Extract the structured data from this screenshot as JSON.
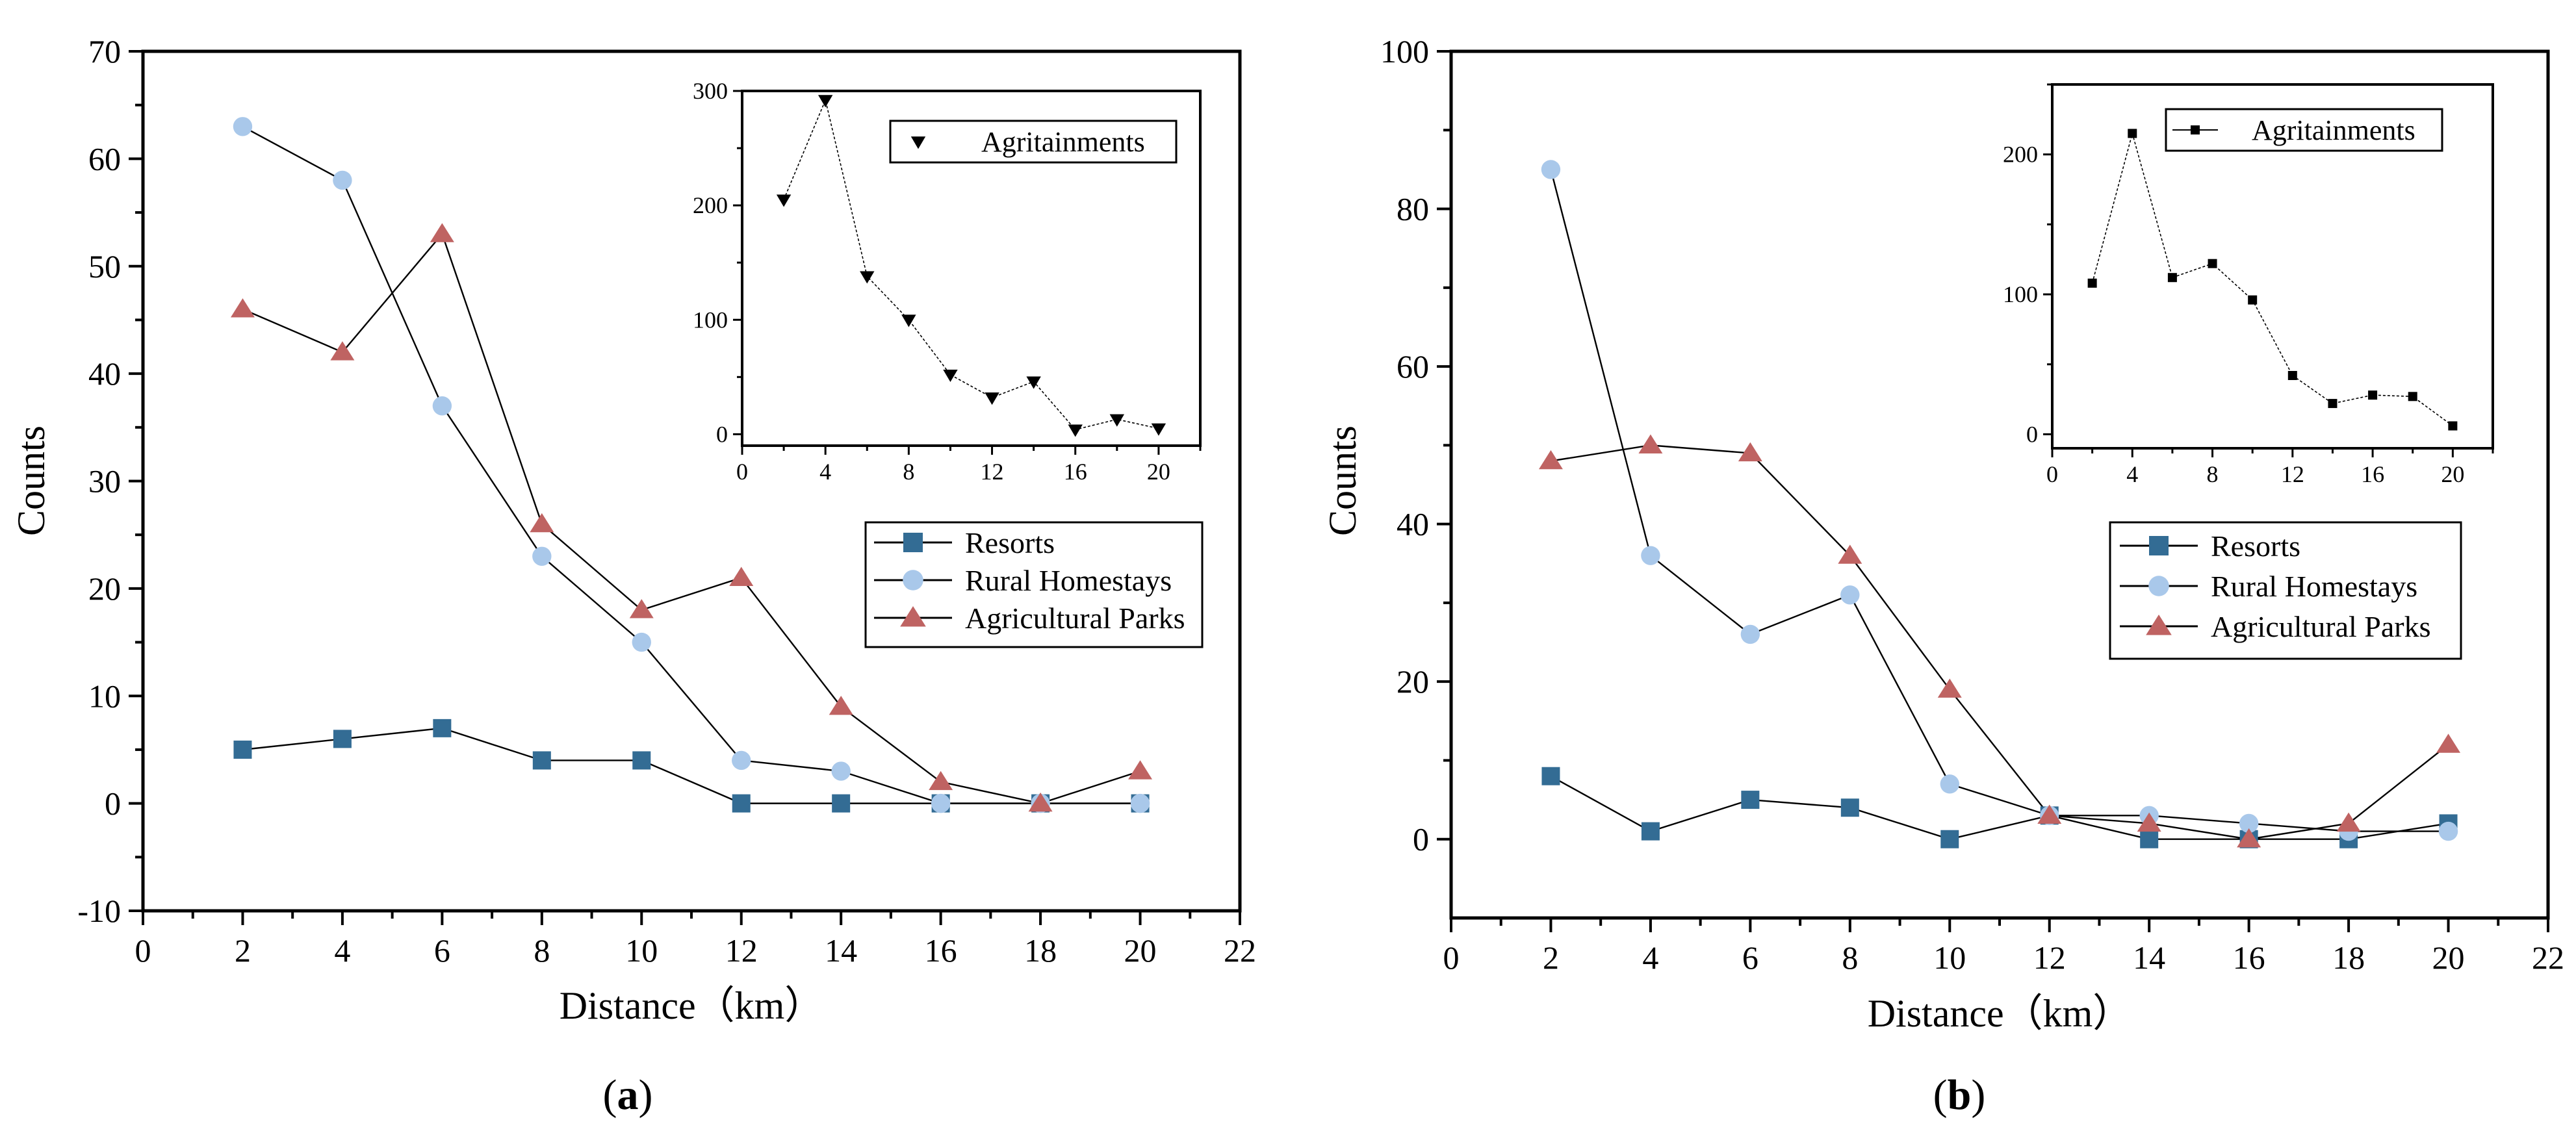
{
  "colors": {
    "resorts": "#336C94",
    "homestays": "#A9C8EA",
    "parks": "#BF6362",
    "agritainments": "#000000",
    "axis": "#000000"
  },
  "chart_data": [
    {
      "type": "line",
      "panel_label": "(a)",
      "panel_label_letter": "a",
      "xlabel": "Distance（km）",
      "ylabel": "Counts",
      "xlim": [
        0,
        22
      ],
      "ylim": [
        -10,
        70
      ],
      "xticks": [
        0,
        2,
        4,
        6,
        8,
        10,
        12,
        14,
        16,
        18,
        20,
        22
      ],
      "yticks": [
        -10,
        0,
        10,
        20,
        30,
        40,
        50,
        60,
        70
      ],
      "legend_position": "right-middle",
      "series": [
        {
          "name": "Resorts",
          "marker": "square",
          "color_key": "resorts",
          "x": [
            2,
            4,
            6,
            8,
            10,
            12,
            14,
            16,
            18,
            20
          ],
          "values": [
            5,
            6,
            7,
            4,
            4,
            0,
            0,
            0,
            0,
            0
          ]
        },
        {
          "name": "Rural Homestays",
          "marker": "circle",
          "color_key": "homestays",
          "x": [
            2,
            4,
            6,
            8,
            10,
            12,
            14,
            16,
            18,
            20
          ],
          "values": [
            63,
            58,
            37,
            23,
            15,
            4,
            3,
            0,
            0,
            0
          ]
        },
        {
          "name": "Agricultural Parks",
          "marker": "triangle",
          "color_key": "parks",
          "x": [
            2,
            4,
            6,
            8,
            10,
            12,
            14,
            16,
            18,
            20
          ],
          "values": [
            46,
            42,
            53,
            26,
            18,
            21,
            9,
            2,
            0,
            3
          ]
        }
      ],
      "inset": {
        "xlim": [
          0,
          22
        ],
        "ylim": [
          -10,
          300
        ],
        "xticks": [
          0,
          4,
          8,
          12,
          16,
          20
        ],
        "yticks": [
          0,
          100,
          200,
          300
        ],
        "series": [
          {
            "name": "Agritainments",
            "marker": "triangle-down",
            "color_key": "agritainments",
            "x": [
              2,
              4,
              6,
              8,
              10,
              12,
              14,
              16,
              18,
              20
            ],
            "values": [
              205,
              292,
              138,
              100,
              52,
              32,
              46,
              4,
              13,
              5
            ]
          }
        ]
      }
    },
    {
      "type": "line",
      "panel_label": "(b)",
      "panel_label_letter": "b",
      "xlabel": "Distance（km）",
      "ylabel": "Counts",
      "xlim": [
        0,
        22
      ],
      "ylim": [
        -10,
        100
      ],
      "xticks": [
        0,
        2,
        4,
        6,
        8,
        10,
        12,
        14,
        16,
        18,
        20,
        22
      ],
      "yticks": [
        0,
        20,
        40,
        60,
        80,
        100
      ],
      "legend_position": "right-middle",
      "series": [
        {
          "name": "Resorts",
          "marker": "square",
          "color_key": "resorts",
          "x": [
            2,
            4,
            6,
            8,
            10,
            12,
            14,
            16,
            18,
            20
          ],
          "values": [
            8,
            1,
            5,
            4,
            0,
            3,
            0,
            0,
            0,
            2
          ]
        },
        {
          "name": "Rural Homestays",
          "marker": "circle",
          "color_key": "homestays",
          "x": [
            2,
            4,
            6,
            8,
            10,
            12,
            14,
            16,
            18,
            20
          ],
          "values": [
            85,
            36,
            26,
            31,
            7,
            3,
            3,
            2,
            1,
            1
          ]
        },
        {
          "name": "Agricultural Parks",
          "marker": "triangle",
          "color_key": "parks",
          "x": [
            2,
            4,
            6,
            8,
            10,
            12,
            14,
            16,
            18,
            20
          ],
          "values": [
            48,
            50,
            49,
            36,
            19,
            3,
            2,
            0,
            2,
            12
          ]
        }
      ],
      "inset": {
        "xlim": [
          0,
          22
        ],
        "ylim": [
          -10,
          250
        ],
        "xticks": [
          0,
          4,
          8,
          12,
          16,
          20
        ],
        "yticks": [
          0,
          100,
          200
        ],
        "series": [
          {
            "name": "Agritainments",
            "marker": "square-small",
            "color_key": "agritainments",
            "x": [
              2,
              4,
              6,
              8,
              10,
              12,
              14,
              16,
              18,
              20
            ],
            "values": [
              108,
              215,
              112,
              122,
              96,
              42,
              22,
              28,
              27,
              6
            ]
          }
        ]
      }
    }
  ]
}
